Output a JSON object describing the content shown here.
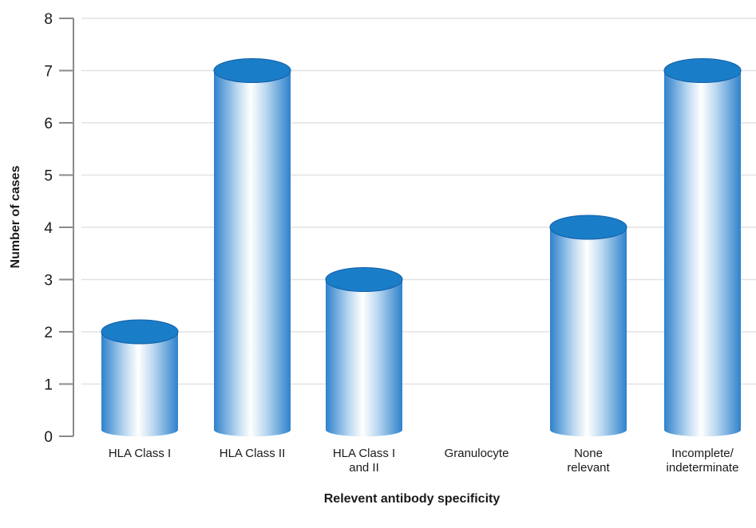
{
  "chart_data": {
    "type": "bar",
    "style": "cylinder",
    "categories": [
      [
        "HLA Class I"
      ],
      [
        "HLA Class II"
      ],
      [
        "HLA Class I",
        "and II"
      ],
      [
        "Granulocyte"
      ],
      [
        "None",
        "relevant"
      ],
      [
        "Incomplete/",
        "indeterminate"
      ]
    ],
    "values": [
      2,
      7,
      3,
      0,
      4,
      7
    ],
    "xlabel": "Relevent antibody specificity",
    "ylabel": "Number of cases",
    "ylim": [
      0,
      8
    ],
    "yticks": [
      0,
      1,
      2,
      3,
      4,
      5,
      6,
      7,
      8
    ],
    "grid": true,
    "colors": {
      "bar_top": "#1a7dc8",
      "bar_top_rim": "#0f5fa8",
      "bar_body_edge": "#2f82cc",
      "bar_body_center": "#ffffff",
      "gridline": "#e2e2e2",
      "axis": "#8a8a8a"
    }
  }
}
